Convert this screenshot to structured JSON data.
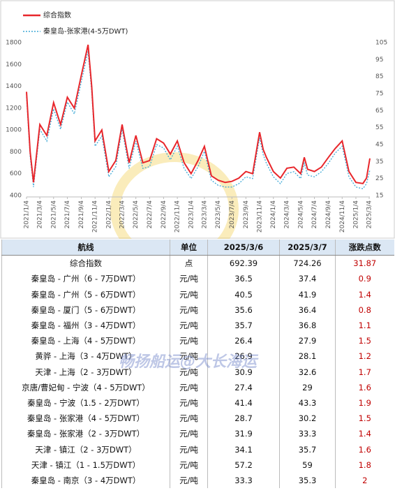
{
  "chart_data": {
    "type": "line",
    "x": [
      "2021/1/4",
      "2021/1/20",
      "2021/2/4",
      "2021/3/4",
      "2021/4/4",
      "2021/5/4",
      "2021/6/4",
      "2021/7/4",
      "2021/8/4",
      "2021/9/4",
      "2021/10/4",
      "2021/10/20",
      "2021/11/4",
      "2021/12/4",
      "2022/1/4",
      "2022/2/4",
      "2022/3/4",
      "2022/4/4",
      "2022/5/4",
      "2022/6/4",
      "2022/7/4",
      "2022/8/4",
      "2022/9/4",
      "2022/10/4",
      "2022/11/4",
      "2022/12/4",
      "2023/1/4",
      "2023/2/4",
      "2023/3/4",
      "2023/4/4",
      "2023/5/4",
      "2023/6/4",
      "2023/7/4",
      "2023/8/4",
      "2023/9/4",
      "2023/10/4",
      "2023/11/4",
      "2023/11/20",
      "2023/12/4",
      "2024/1/4",
      "2024/2/4",
      "2024/3/4",
      "2024/4/4",
      "2024/5/4",
      "2024/5/20",
      "2024/6/4",
      "2024/7/4",
      "2024/8/4",
      "2024/9/4",
      "2024/10/4",
      "2024/11/4",
      "2024/12/4",
      "2025/1/4",
      "2025/2/4",
      "2025/2/20",
      "2025/3/7"
    ],
    "series": [
      {
        "name": "综合指数",
        "color": "#e8262b",
        "values": [
          1350,
          800,
          520,
          1050,
          950,
          1250,
          1050,
          1300,
          1200,
          1500,
          1780,
          1400,
          900,
          1000,
          620,
          720,
          1050,
          700,
          950,
          700,
          720,
          920,
          880,
          780,
          900,
          700,
          600,
          720,
          850,
          580,
          540,
          520,
          530,
          560,
          620,
          600,
          980,
          820,
          750,
          620,
          560,
          650,
          660,
          600,
          750,
          640,
          620,
          660,
          750,
          830,
          900,
          620,
          520,
          510,
          560,
          740
        ]
      },
      {
        "name": "秦皇岛-张家港(4-5万DWT)",
        "color": "#3fa9d6",
        "axis": "y2",
        "values": [
          73,
          38,
          20,
          54,
          47,
          66,
          54,
          70,
          63,
          82,
          100,
          76,
          44,
          50,
          26,
          32,
          54,
          31,
          47,
          31,
          32,
          45,
          43,
          36,
          44,
          31,
          25,
          32,
          41,
          24,
          21,
          20,
          20,
          22,
          26,
          25,
          49,
          39,
          34,
          26,
          22,
          28,
          29,
          25,
          34,
          27,
          26,
          29,
          34,
          40,
          44,
          26,
          20,
          19,
          22,
          30
        ]
      }
    ],
    "xlim": [
      "2021/1/4",
      "2025/3/7"
    ],
    "xticks": [
      "2021/1/4",
      "2021/3/4",
      "2021/5/4",
      "2021/7/4",
      "2021/9/4",
      "2021/11/4",
      "2022/1/4",
      "2022/3/4",
      "2022/5/4",
      "2022/7/4",
      "2022/9/4",
      "2022/11/4",
      "2023/1/4",
      "2023/3/4",
      "2023/5/4",
      "2023/7/4",
      "2023/9/4",
      "2023/11/4",
      "2024/1/4",
      "2024/3/4",
      "2024/5/4",
      "2024/7/4",
      "2024/9/4",
      "2024/11/4",
      "2025/1/4",
      "2025/3/4"
    ],
    "ylim": [
      400,
      1800
    ],
    "yticks": [
      400,
      600,
      800,
      1000,
      1200,
      1400,
      1600,
      1800
    ],
    "y2lim": [
      15,
      105
    ],
    "y2ticks": [
      15,
      25,
      35,
      45,
      55,
      65,
      75,
      85,
      95,
      105
    ],
    "legend": "top-left"
  },
  "table": {
    "header": [
      "航线",
      "单位",
      "2025/3/6",
      "2025/3/7",
      "涨跌点数"
    ],
    "rows": [
      [
        "综合指数",
        "点",
        692.39,
        724.26,
        31.87
      ],
      [
        "秦皇岛 - 广州（6 - 7万DWT）",
        "元/吨",
        36.5,
        37.4,
        0.9
      ],
      [
        "秦皇岛 - 广州（5 - 6万DWT）",
        "元/吨",
        40.5,
        41.9,
        1.4
      ],
      [
        "秦皇岛 - 厦门（5 - 6万DWT）",
        "元/吨",
        35.6,
        36.4,
        0.8
      ],
      [
        "秦皇岛 - 福州（3 - 4万DWT）",
        "元/吨",
        35.7,
        36.8,
        1.1
      ],
      [
        "秦皇岛 - 上海（4 - 5万DWT）",
        "元/吨",
        26.4,
        27.9,
        1.5
      ],
      [
        "黄骅 - 上海（3 - 4万DWT）",
        "元/吨",
        26.9,
        28.1,
        1.2
      ],
      [
        "天津 - 上海（2 - 3万DWT）",
        "元/吨",
        30.9,
        32.6,
        1.7
      ],
      [
        "京唐/曹妃甸 - 宁波（4 - 5万DWT）",
        "元/吨",
        27.4,
        29,
        1.6
      ],
      [
        "秦皇岛 - 宁波（1.5 - 2万DWT）",
        "元/吨",
        41.4,
        43.3,
        1.9
      ],
      [
        "秦皇岛 - 张家港（4 - 5万DWT）",
        "元/吨",
        28.7,
        30.2,
        1.5
      ],
      [
        "秦皇岛 - 张家港（2 - 3万DWT）",
        "元/吨",
        31.9,
        33.3,
        1.4
      ],
      [
        "天津 - 镇江（2 - 3万DWT）",
        "元/吨",
        34.1,
        35.7,
        1.6
      ],
      [
        "天津 - 镇江（1 - 1.5万DWT）",
        "元/吨",
        57.2,
        59,
        1.8
      ],
      [
        "秦皇岛 - 南京（3 - 4万DWT）",
        "元/吨",
        33.3,
        35.3,
        2
      ]
    ]
  },
  "watermark": "畅扬船运@大长海运"
}
